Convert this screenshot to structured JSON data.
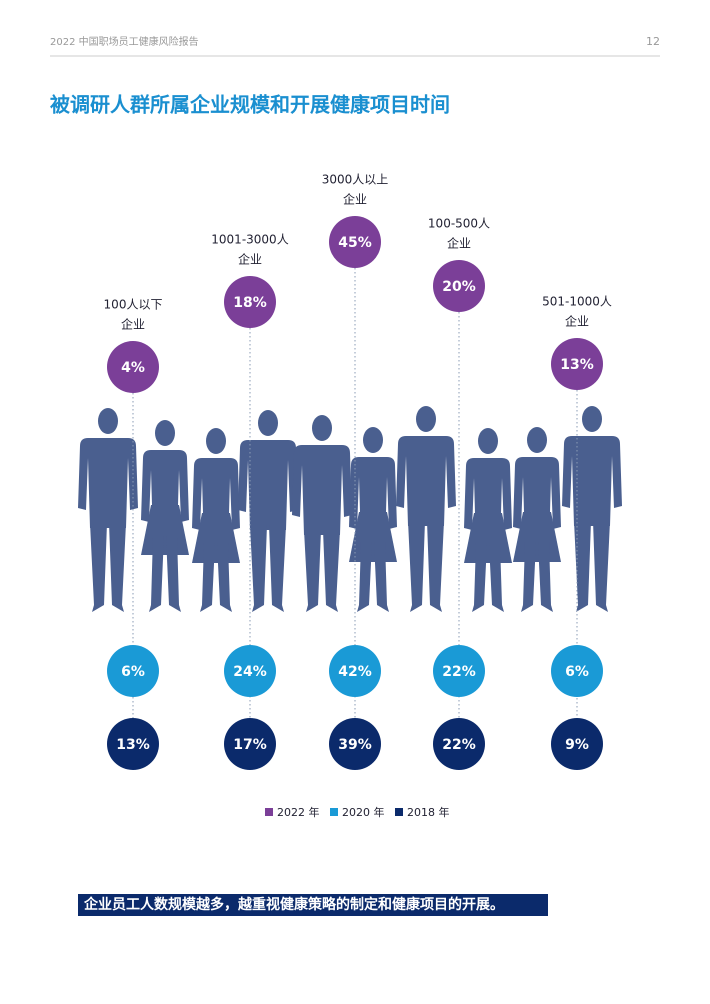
{
  "header": {
    "report": "2022 中国职场员工健康风险报告",
    "page": "12"
  },
  "title": "被调研人群所属企业规模和开展健康项目时间",
  "groups": [
    {
      "label": [
        "100人以下",
        "企业"
      ],
      "y2022": "4%",
      "y2020": "6%",
      "y2018": "13%"
    },
    {
      "label": [
        "1001-3000人",
        "企业"
      ],
      "y2022": "18%",
      "y2020": "24%",
      "y2018": "17%"
    },
    {
      "label": [
        "3000人以上",
        "企业"
      ],
      "y2022": "45%",
      "y2020": "42%",
      "y2018": "39%"
    },
    {
      "label": [
        "100-500人",
        "企业"
      ],
      "y2022": "20%",
      "y2020": "22%",
      "y2018": "22%"
    },
    {
      "label": [
        "501-1000人",
        "企业"
      ],
      "y2022": "13%",
      "y2020": "6%",
      "y2018": "9%"
    }
  ],
  "legend": [
    "2022 年",
    "2020 年",
    "2018 年"
  ],
  "conclusion": "企业员工人数规模越多，越重视健康策略的制定和健康项目的开展。"
}
